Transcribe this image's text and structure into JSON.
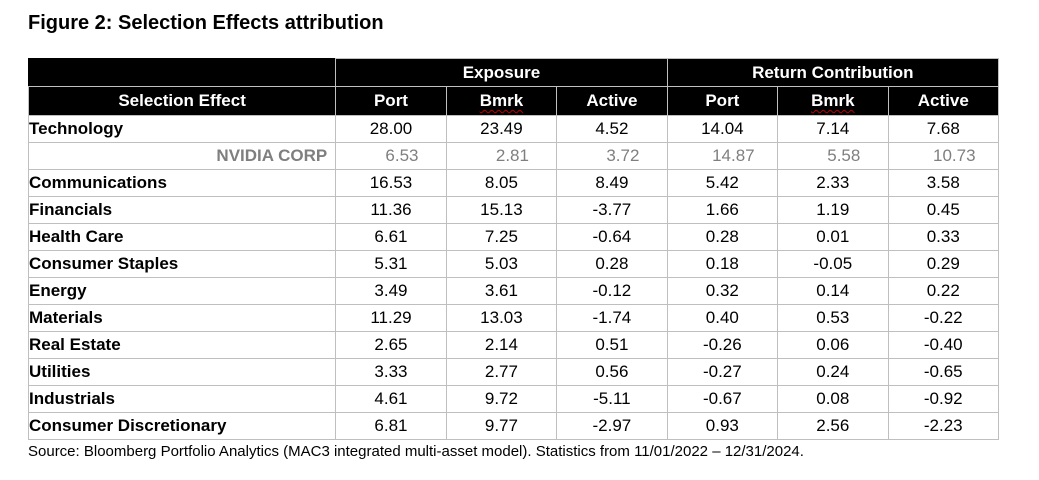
{
  "title": "Figure 2: Selection Effects attribution",
  "header": {
    "group_exposure": "Exposure",
    "group_return": "Return Contribution",
    "col_selection": "Selection Effect",
    "col_port": "Port",
    "col_bmrk": "Bmrk",
    "col_active": "Active",
    "col_port2": "Port",
    "col_bmrk2": "Bmrk",
    "col_active2": "Active"
  },
  "rows": [
    {
      "label": "Technology",
      "vals": [
        "28.00",
        "23.49",
        "4.52",
        "14.04",
        "7.14",
        "7.68"
      ]
    },
    {
      "label": "NVIDIA CORP",
      "vals": [
        "6.53",
        "2.81",
        "3.72",
        "14.87",
        "5.58",
        "10.73"
      ]
    },
    {
      "label": "Communications",
      "vals": [
        "16.53",
        "8.05",
        "8.49",
        "5.42",
        "2.33",
        "3.58"
      ]
    },
    {
      "label": "Financials",
      "vals": [
        "11.36",
        "15.13",
        "-3.77",
        "1.66",
        "1.19",
        "0.45"
      ]
    },
    {
      "label": "Health Care",
      "vals": [
        "6.61",
        "7.25",
        "-0.64",
        "0.28",
        "0.01",
        "0.33"
      ]
    },
    {
      "label": "Consumer Staples",
      "vals": [
        "5.31",
        "5.03",
        "0.28",
        "0.18",
        "-0.05",
        "0.29"
      ]
    },
    {
      "label": "Energy",
      "vals": [
        "3.49",
        "3.61",
        "-0.12",
        "0.32",
        "0.14",
        "0.22"
      ]
    },
    {
      "label": "Materials",
      "vals": [
        "11.29",
        "13.03",
        "-1.74",
        "0.40",
        "0.53",
        "-0.22"
      ]
    },
    {
      "label": "Real Estate",
      "vals": [
        "2.65",
        "2.14",
        "0.51",
        "-0.26",
        "0.06",
        "-0.40"
      ]
    },
    {
      "label": "Utilities",
      "vals": [
        "3.33",
        "2.77",
        "0.56",
        "-0.27",
        "0.24",
        "-0.65"
      ]
    },
    {
      "label": "Industrials",
      "vals": [
        "4.61",
        "9.72",
        "-5.11",
        "-0.67",
        "0.08",
        "-0.92"
      ]
    },
    {
      "label": "Consumer Discretionary",
      "vals": [
        "6.81",
        "9.77",
        "-2.97",
        "0.93",
        "2.56",
        "-2.23"
      ]
    }
  ],
  "source": "Source: Bloomberg Portfolio Analytics (MAC3 integrated multi-asset model). Statistics from 11/01/2022 – 12/31/2024."
}
